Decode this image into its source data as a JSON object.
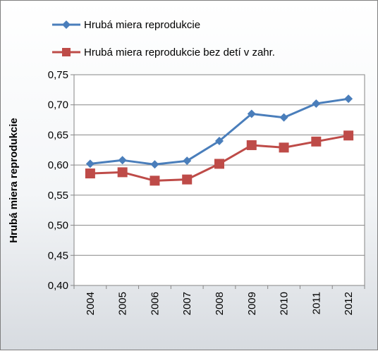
{
  "chart_data": {
    "type": "line",
    "categories": [
      "2004",
      "2005",
      "2006",
      "2007",
      "2008",
      "2009",
      "2010",
      "2011",
      "2012"
    ],
    "series": [
      {
        "name": "Hrubá miera reprodukcie",
        "color": "#4a7ebb",
        "marker": "diamond",
        "values": [
          0.602,
          0.608,
          0.601,
          0.607,
          0.64,
          0.685,
          0.679,
          0.702,
          0.71
        ]
      },
      {
        "name": "Hrubá miera reprodukcie bez detí v zahr.",
        "color": "#be4b48",
        "marker": "square",
        "values": [
          0.586,
          0.588,
          0.574,
          0.576,
          0.602,
          0.633,
          0.629,
          0.639,
          0.649
        ]
      }
    ],
    "ylabel": "Hrubá miera reprodukcie",
    "xlabel": "",
    "ylim": [
      0.4,
      0.75
    ],
    "yticks": [
      "0,40",
      "0,45",
      "0,50",
      "0,55",
      "0,60",
      "0,65",
      "0,70",
      "0,75"
    ],
    "grid": true,
    "legend_position": "top"
  }
}
